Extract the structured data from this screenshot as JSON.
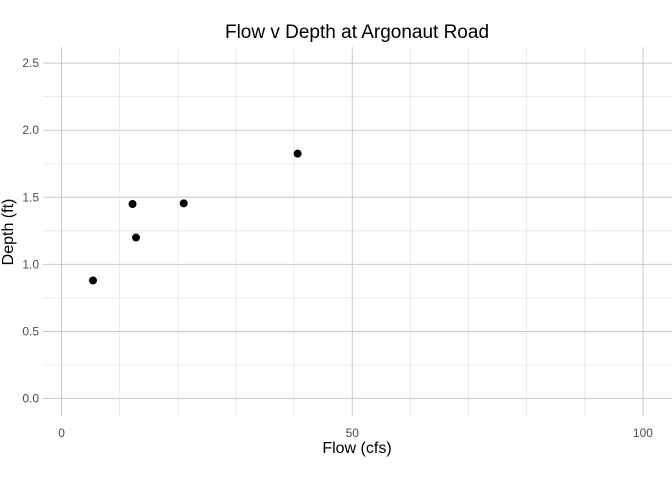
{
  "chart_data": {
    "type": "scatter",
    "title": "Flow v Depth at Argonaut Road",
    "xlabel": "Flow (cfs)",
    "ylabel": "Depth (ft)",
    "xlim": [
      -3.2,
      105
    ],
    "ylim": [
      -0.13,
      2.62
    ],
    "x_major_ticks": [
      0,
      50,
      100
    ],
    "x_tick_labels": [
      "0",
      "50",
      "100"
    ],
    "x_minor_ticks": [
      10,
      20,
      30,
      40,
      60,
      70,
      80,
      90
    ],
    "y_major_ticks": [
      0,
      0.5,
      1.0,
      1.5,
      2.0,
      2.5
    ],
    "y_tick_labels": [
      "0.0",
      "0.5",
      "1.0",
      "1.5",
      "2.0",
      "2.5"
    ],
    "y_minor_ticks": [
      0.25,
      0.75,
      1.25,
      1.75,
      2.25
    ],
    "grid": true,
    "point_color": "#000000",
    "series": [
      {
        "points": [
          {
            "x": 5.4,
            "y": 0.88
          },
          {
            "x": 12.2,
            "y": 1.45
          },
          {
            "x": 12.8,
            "y": 1.2
          },
          {
            "x": 21.0,
            "y": 1.455
          },
          {
            "x": 40.6,
            "y": 1.825
          }
        ]
      }
    ]
  }
}
